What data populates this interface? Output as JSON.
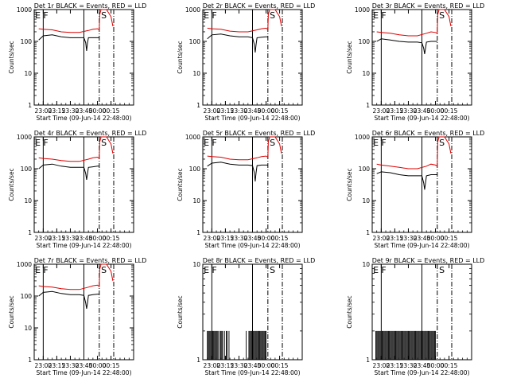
{
  "figure": {
    "layout": "3x3",
    "x_ticks": [
      "23:00",
      "23:15",
      "23:30",
      "23:45",
      "00:00",
      "00:15"
    ],
    "x_range_minutes": [
      -10,
      100
    ],
    "tick_minutes": [
      0,
      15,
      30,
      45,
      60,
      75
    ]
  },
  "chart_data": [
    {
      "type": "line",
      "panel": 1,
      "title": "Det 1r BLACK = Events, RED = LLD",
      "xlabel": "Start Time (09-Jun-14 22:48:00)",
      "ylabel": "Counts/sec",
      "y_scale": "log",
      "ylim": [
        1,
        1000
      ],
      "yticks": [
        "1",
        "10",
        "100",
        "1000"
      ],
      "series": [
        {
          "name": "BLACK = Events",
          "color": "#000000",
          "x": [
            -5,
            0,
            10,
            20,
            30,
            40,
            45,
            47,
            48,
            49,
            50,
            55,
            60,
            62
          ],
          "y": [
            110,
            150,
            160,
            140,
            130,
            130,
            130,
            90,
            50,
            90,
            130,
            130,
            130,
            130
          ]
        },
        {
          "name": "RED = LLD",
          "color": "#dd0000",
          "x": [
            -5,
            0,
            10,
            20,
            30,
            40,
            50,
            55,
            60,
            62,
            62.5,
            64,
            70,
            75,
            77
          ],
          "y": [
            250,
            240,
            230,
            200,
            190,
            190,
            220,
            240,
            250,
            230,
            700,
            1000,
            1000,
            600,
            300
          ]
        }
      ],
      "markers": [
        {
          "label": "E",
          "x": -9
        },
        {
          "label": "F",
          "x": 0
        },
        {
          "label": "S",
          "x": 64
        }
      ],
      "vlines": [
        {
          "x": 0,
          "style": "solid"
        },
        {
          "x": 45,
          "style": "solid"
        },
        {
          "x": 62,
          "style": "dashdot"
        },
        {
          "x": 78,
          "style": "dashdot"
        }
      ]
    },
    {
      "type": "line",
      "panel": 2,
      "title": "Det 2r BLACK = Events, RED = LLD",
      "xlabel": "Start Time (09-Jun-14 22:48:00)",
      "ylabel": "Counts/sec",
      "y_scale": "log",
      "ylim": [
        1,
        1000
      ],
      "yticks": [
        "1",
        "10",
        "100",
        "1000"
      ],
      "series": [
        {
          "name": "BLACK = Events",
          "color": "#000000",
          "x": [
            -5,
            0,
            10,
            20,
            30,
            40,
            45,
            47,
            48,
            49,
            50,
            55,
            60,
            62
          ],
          "y": [
            120,
            160,
            170,
            150,
            140,
            140,
            130,
            80,
            45,
            80,
            130,
            135,
            140,
            140
          ]
        },
        {
          "name": "RED = LLD",
          "color": "#dd0000",
          "x": [
            -5,
            0,
            10,
            20,
            30,
            40,
            50,
            55,
            60,
            62,
            62.5,
            64,
            70,
            75,
            77
          ],
          "y": [
            260,
            250,
            240,
            210,
            200,
            200,
            230,
            250,
            260,
            240,
            700,
            1000,
            1000,
            600,
            300
          ]
        }
      ],
      "markers": [
        {
          "label": "E",
          "x": -9
        },
        {
          "label": "F",
          "x": 0
        },
        {
          "label": "S",
          "x": 64
        }
      ],
      "vlines": [
        {
          "x": 0,
          "style": "solid"
        },
        {
          "x": 45,
          "style": "solid"
        },
        {
          "x": 62,
          "style": "dashdot"
        },
        {
          "x": 78,
          "style": "dashdot"
        }
      ]
    },
    {
      "type": "line",
      "panel": 3,
      "title": "Det 3r BLACK = Events, RED = LLD",
      "xlabel": "Start Time (09-Jun-14 22:48:00)",
      "ylabel": "Counts/sec",
      "y_scale": "log",
      "ylim": [
        1,
        1000
      ],
      "yticks": [
        "1",
        "10",
        "100",
        "1000"
      ],
      "series": [
        {
          "name": "BLACK = Events",
          "color": "#000000",
          "x": [
            -5,
            0,
            10,
            20,
            30,
            40,
            45,
            47,
            48,
            49,
            50,
            55,
            60,
            62
          ],
          "y": [
            100,
            120,
            110,
            100,
            95,
            95,
            90,
            60,
            40,
            60,
            95,
            100,
            100,
            100
          ]
        },
        {
          "name": "RED = LLD",
          "color": "#dd0000",
          "x": [
            -5,
            0,
            10,
            20,
            30,
            40,
            50,
            55,
            60,
            62,
            62.5,
            64,
            70,
            75,
            77
          ],
          "y": [
            200,
            190,
            180,
            160,
            150,
            150,
            180,
            200,
            190,
            180,
            700,
            1000,
            1000,
            600,
            300
          ]
        }
      ],
      "markers": [
        {
          "label": "E",
          "x": -9
        },
        {
          "label": "F",
          "x": 0
        },
        {
          "label": "S",
          "x": 64
        }
      ],
      "vlines": [
        {
          "x": 0,
          "style": "solid"
        },
        {
          "x": 45,
          "style": "solid"
        },
        {
          "x": 62,
          "style": "dashdot"
        },
        {
          "x": 78,
          "style": "dashdot"
        }
      ]
    },
    {
      "type": "line",
      "panel": 4,
      "title": "Det 4r BLACK = Events, RED = LLD",
      "xlabel": "Start Time (09-Jun-14 22:48:00)",
      "ylabel": "Counts/sec",
      "y_scale": "log",
      "ylim": [
        1,
        1000
      ],
      "yticks": [
        "1",
        "10",
        "100",
        "1000"
      ],
      "series": [
        {
          "name": "BLACK = Events",
          "color": "#000000",
          "x": [
            -5,
            0,
            10,
            20,
            30,
            40,
            45,
            47,
            48,
            49,
            50,
            55,
            60,
            62
          ],
          "y": [
            100,
            130,
            140,
            120,
            110,
            110,
            110,
            70,
            45,
            70,
            110,
            115,
            120,
            120
          ]
        },
        {
          "name": "RED = LLD",
          "color": "#dd0000",
          "x": [
            -5,
            0,
            10,
            20,
            30,
            40,
            50,
            55,
            60,
            62,
            62.5,
            64,
            70,
            75,
            77
          ],
          "y": [
            220,
            210,
            200,
            180,
            170,
            170,
            200,
            220,
            230,
            210,
            700,
            1000,
            1000,
            600,
            300
          ]
        }
      ],
      "markers": [
        {
          "label": "E",
          "x": -9
        },
        {
          "label": "F",
          "x": 0
        },
        {
          "label": "S",
          "x": 64
        }
      ],
      "vlines": [
        {
          "x": 0,
          "style": "solid"
        },
        {
          "x": 45,
          "style": "solid"
        },
        {
          "x": 62,
          "style": "dashdot"
        },
        {
          "x": 78,
          "style": "dashdot"
        }
      ]
    },
    {
      "type": "line",
      "panel": 5,
      "title": "Det 5r BLACK = Events, RED = LLD",
      "xlabel": "Start Time (09-Jun-14 22:48:00)",
      "ylabel": "Counts/sec",
      "y_scale": "log",
      "ylim": [
        1,
        1000
      ],
      "yticks": [
        "1",
        "10",
        "100",
        "1000"
      ],
      "series": [
        {
          "name": "BLACK = Events",
          "color": "#000000",
          "x": [
            -5,
            0,
            10,
            20,
            30,
            40,
            45,
            47,
            48,
            49,
            50,
            55,
            60,
            62
          ],
          "y": [
            120,
            150,
            160,
            140,
            130,
            130,
            125,
            75,
            40,
            75,
            125,
            130,
            130,
            130
          ]
        },
        {
          "name": "RED = LLD",
          "color": "#dd0000",
          "x": [
            -5,
            0,
            10,
            20,
            30,
            40,
            50,
            55,
            60,
            62,
            62.5,
            64,
            70,
            75,
            77
          ],
          "y": [
            250,
            240,
            230,
            200,
            190,
            190,
            220,
            240,
            250,
            230,
            700,
            1000,
            1000,
            600,
            300
          ]
        }
      ],
      "markers": [
        {
          "label": "E",
          "x": -9
        },
        {
          "label": "F",
          "x": 0
        },
        {
          "label": "S",
          "x": 64
        }
      ],
      "vlines": [
        {
          "x": 0,
          "style": "solid"
        },
        {
          "x": 45,
          "style": "solid"
        },
        {
          "x": 62,
          "style": "dashdot"
        },
        {
          "x": 78,
          "style": "dashdot"
        }
      ]
    },
    {
      "type": "line",
      "panel": 6,
      "title": "Det 6r BLACK = Events, RED = LLD",
      "xlabel": "Start Time (09-Jun-14 22:48:00)",
      "ylabel": "Counts/sec",
      "y_scale": "log",
      "ylim": [
        1,
        1000
      ],
      "yticks": [
        "1",
        "10",
        "100",
        "1000"
      ],
      "series": [
        {
          "name": "BLACK = Events",
          "color": "#000000",
          "x": [
            -5,
            0,
            10,
            20,
            30,
            40,
            45,
            47,
            48,
            49,
            50,
            55,
            60,
            62
          ],
          "y": [
            70,
            80,
            75,
            65,
            60,
            60,
            60,
            35,
            22,
            35,
            60,
            65,
            65,
            65
          ]
        },
        {
          "name": "RED = LLD",
          "color": "#dd0000",
          "x": [
            -5,
            0,
            10,
            20,
            30,
            40,
            50,
            55,
            60,
            62,
            62.5,
            64,
            70,
            75,
            77
          ],
          "y": [
            140,
            130,
            120,
            110,
            100,
            100,
            120,
            140,
            130,
            120,
            700,
            1000,
            1000,
            600,
            300
          ]
        }
      ],
      "markers": [
        {
          "label": "E",
          "x": -9
        },
        {
          "label": "F",
          "x": 0
        },
        {
          "label": "S",
          "x": 64
        }
      ],
      "vlines": [
        {
          "x": 0,
          "style": "solid"
        },
        {
          "x": 45,
          "style": "solid"
        },
        {
          "x": 62,
          "style": "dashdot"
        },
        {
          "x": 78,
          "style": "dashdot"
        }
      ]
    },
    {
      "type": "line",
      "panel": 7,
      "title": "Det 7r BLACK = Events, RED = LLD",
      "xlabel": "Start Time (09-Jun-14 22:48:00)",
      "ylabel": "Counts/sec",
      "y_scale": "log",
      "ylim": [
        1,
        1000
      ],
      "yticks": [
        "1",
        "10",
        "100",
        "1000"
      ],
      "series": [
        {
          "name": "BLACK = Events",
          "color": "#000000",
          "x": [
            -5,
            0,
            10,
            20,
            30,
            40,
            45,
            47,
            48,
            49,
            50,
            55,
            60,
            62
          ],
          "y": [
            100,
            130,
            140,
            120,
            110,
            110,
            105,
            60,
            40,
            60,
            105,
            110,
            115,
            115
          ]
        },
        {
          "name": "RED = LLD",
          "color": "#dd0000",
          "x": [
            -5,
            0,
            10,
            20,
            30,
            40,
            50,
            55,
            60,
            62,
            62.5,
            64,
            70,
            75,
            77
          ],
          "y": [
            210,
            200,
            190,
            170,
            160,
            160,
            190,
            210,
            220,
            200,
            700,
            1000,
            1000,
            600,
            300
          ]
        }
      ],
      "markers": [
        {
          "label": "E",
          "x": -9
        },
        {
          "label": "F",
          "x": 0
        },
        {
          "label": "S",
          "x": 64
        }
      ],
      "vlines": [
        {
          "x": 0,
          "style": "solid"
        },
        {
          "x": 45,
          "style": "solid"
        },
        {
          "x": 62,
          "style": "dashdot"
        },
        {
          "x": 78,
          "style": "dashdot"
        }
      ]
    },
    {
      "type": "line",
      "panel": 8,
      "title": "Det 8r BLACK = Events, RED = LLD",
      "xlabel": "Start Time (09-Jun-14 22:48:00)",
      "ylabel": "Counts/sec",
      "y_scale": "log",
      "ylim": [
        1,
        10
      ],
      "yticks": [
        "1",
        "10"
      ],
      "series": [
        {
          "name": "BLACK = Events",
          "color": "#000000",
          "spikes_x": [
            -5,
            -4,
            -3,
            -2,
            -1,
            1,
            2,
            3,
            4,
            5,
            6,
            7,
            9,
            10,
            11,
            12,
            14,
            16,
            17,
            19,
            38,
            41,
            42,
            43,
            44,
            45,
            46,
            47,
            48,
            49,
            50,
            51,
            52,
            53,
            54,
            55,
            56,
            57,
            58,
            59,
            60
          ],
          "spike_value": 2
        }
      ],
      "markers": [
        {
          "label": "E",
          "x": -9
        },
        {
          "label": "F",
          "x": 0
        },
        {
          "label": "S",
          "x": 64
        }
      ],
      "vlines": [
        {
          "x": 0,
          "style": "solid"
        },
        {
          "x": 45,
          "style": "solid"
        },
        {
          "x": 62,
          "style": "dashdot"
        },
        {
          "x": 78,
          "style": "dashdot"
        }
      ]
    },
    {
      "type": "line",
      "panel": 9,
      "title": "Det 9r BLACK = Events, RED = LLD",
      "xlabel": "Start Time (09-Jun-14 22:48:00)",
      "ylabel": "Counts/sec",
      "y_scale": "log",
      "ylim": [
        1,
        10
      ],
      "yticks": [
        "1",
        "10"
      ],
      "series": [
        {
          "name": "BLACK = Events",
          "color": "#000000",
          "spikes_x": [
            -6,
            -5,
            -4,
            -3,
            -2,
            -1,
            1,
            2,
            3,
            4,
            5,
            6,
            7,
            8,
            9,
            10,
            11,
            12,
            13,
            14,
            15,
            16,
            17,
            18,
            19,
            20,
            21,
            22,
            23,
            24,
            25,
            26,
            27,
            28,
            29,
            30,
            31,
            32,
            33,
            34,
            35,
            36,
            37,
            38,
            39,
            40,
            41,
            42,
            43,
            44,
            45,
            46,
            47,
            48,
            49,
            50,
            51,
            52,
            53,
            54,
            55,
            56,
            57,
            58,
            59,
            60
          ],
          "spike_value": 2
        }
      ],
      "markers": [
        {
          "label": "E",
          "x": -9
        },
        {
          "label": "F",
          "x": 0
        },
        {
          "label": "S",
          "x": 64
        }
      ],
      "vlines": [
        {
          "x": 0,
          "style": "solid"
        },
        {
          "x": 45,
          "style": "solid"
        },
        {
          "x": 62,
          "style": "dashdot"
        },
        {
          "x": 78,
          "style": "dashdot"
        }
      ]
    }
  ]
}
